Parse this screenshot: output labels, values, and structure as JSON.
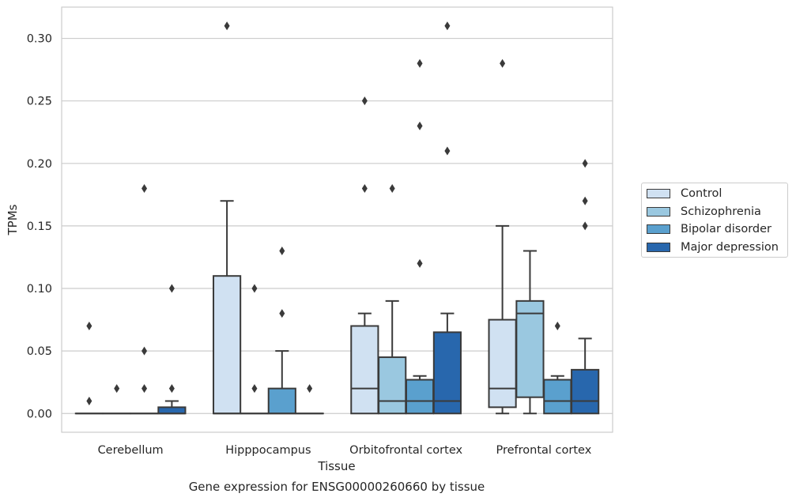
{
  "chart_data": {
    "type": "box",
    "title": "",
    "caption": "Gene expression for ENSG00000260660 by tissue",
    "xlabel": "Tissue",
    "ylabel": "TPMs",
    "ylim": [
      -0.015,
      0.325
    ],
    "yticks": [
      0.0,
      0.05,
      0.1,
      0.15,
      0.2,
      0.25,
      0.3
    ],
    "ytick_labels": [
      "0.00",
      "0.05",
      "0.10",
      "0.15",
      "0.20",
      "0.25",
      "0.30"
    ],
    "grid": "horizontal",
    "legend_position": "right",
    "categories": [
      "Cerebellum",
      "Hipppocampus",
      "Orbitofrontal cortex",
      "Prefrontal cortex"
    ],
    "series": [
      {
        "name": "Control",
        "color": "#d0e1f2",
        "boxes": [
          {
            "whislo": 0,
            "q1": 0,
            "med": 0,
            "q3": 0,
            "whishi": 0,
            "fliers": [
              0.07,
              0.01
            ]
          },
          {
            "whislo": 0,
            "q1": 0,
            "med": 0,
            "q3": 0.11,
            "whishi": 0.17,
            "fliers": [
              0.31
            ]
          },
          {
            "whislo": 0,
            "q1": 0,
            "med": 0.02,
            "q3": 0.07,
            "whishi": 0.08,
            "fliers": [
              0.25,
              0.18
            ]
          },
          {
            "whislo": 0,
            "q1": 0.005,
            "med": 0.02,
            "q3": 0.075,
            "whishi": 0.15,
            "fliers": [
              0.28
            ]
          }
        ]
      },
      {
        "name": "Schizophrenia",
        "color": "#9ac8e0",
        "boxes": [
          {
            "whislo": 0,
            "q1": 0,
            "med": 0,
            "q3": 0,
            "whishi": 0,
            "fliers": [
              0.02
            ]
          },
          {
            "whislo": 0,
            "q1": 0,
            "med": 0,
            "q3": 0,
            "whishi": 0,
            "fliers": [
              0.1,
              0.02
            ]
          },
          {
            "whislo": 0,
            "q1": 0,
            "med": 0.01,
            "q3": 0.045,
            "whishi": 0.09,
            "fliers": [
              0.18
            ]
          },
          {
            "whislo": 0,
            "q1": 0.013,
            "med": 0.08,
            "q3": 0.09,
            "whishi": 0.13,
            "fliers": []
          }
        ]
      },
      {
        "name": "Bipolar disorder",
        "color": "#5aa0ce",
        "boxes": [
          {
            "whislo": 0,
            "q1": 0,
            "med": 0,
            "q3": 0,
            "whishi": 0,
            "fliers": [
              0.18,
              0.05,
              0.02
            ]
          },
          {
            "whislo": 0,
            "q1": 0,
            "med": 0,
            "q3": 0.02,
            "whishi": 0.05,
            "fliers": [
              0.13,
              0.08
            ]
          },
          {
            "whislo": 0,
            "q1": 0,
            "med": 0.01,
            "q3": 0.027,
            "whishi": 0.03,
            "fliers": [
              0.28,
              0.23,
              0.12
            ]
          },
          {
            "whislo": 0,
            "q1": 0,
            "med": 0.01,
            "q3": 0.027,
            "whishi": 0.03,
            "fliers": [
              0.07
            ]
          }
        ]
      },
      {
        "name": "Major depression",
        "color": "#2867ad",
        "boxes": [
          {
            "whislo": 0,
            "q1": 0,
            "med": 0,
            "q3": 0.005,
            "whishi": 0.01,
            "fliers": [
              0.1,
              0.02
            ]
          },
          {
            "whislo": 0,
            "q1": 0,
            "med": 0,
            "q3": 0,
            "whishi": 0,
            "fliers": [
              0.02
            ]
          },
          {
            "whislo": 0,
            "q1": 0,
            "med": 0.01,
            "q3": 0.065,
            "whishi": 0.08,
            "fliers": [
              0.31,
              0.21
            ]
          },
          {
            "whislo": 0,
            "q1": 0,
            "med": 0.01,
            "q3": 0.035,
            "whishi": 0.06,
            "fliers": [
              0.2,
              0.17,
              0.15
            ]
          }
        ]
      }
    ]
  }
}
